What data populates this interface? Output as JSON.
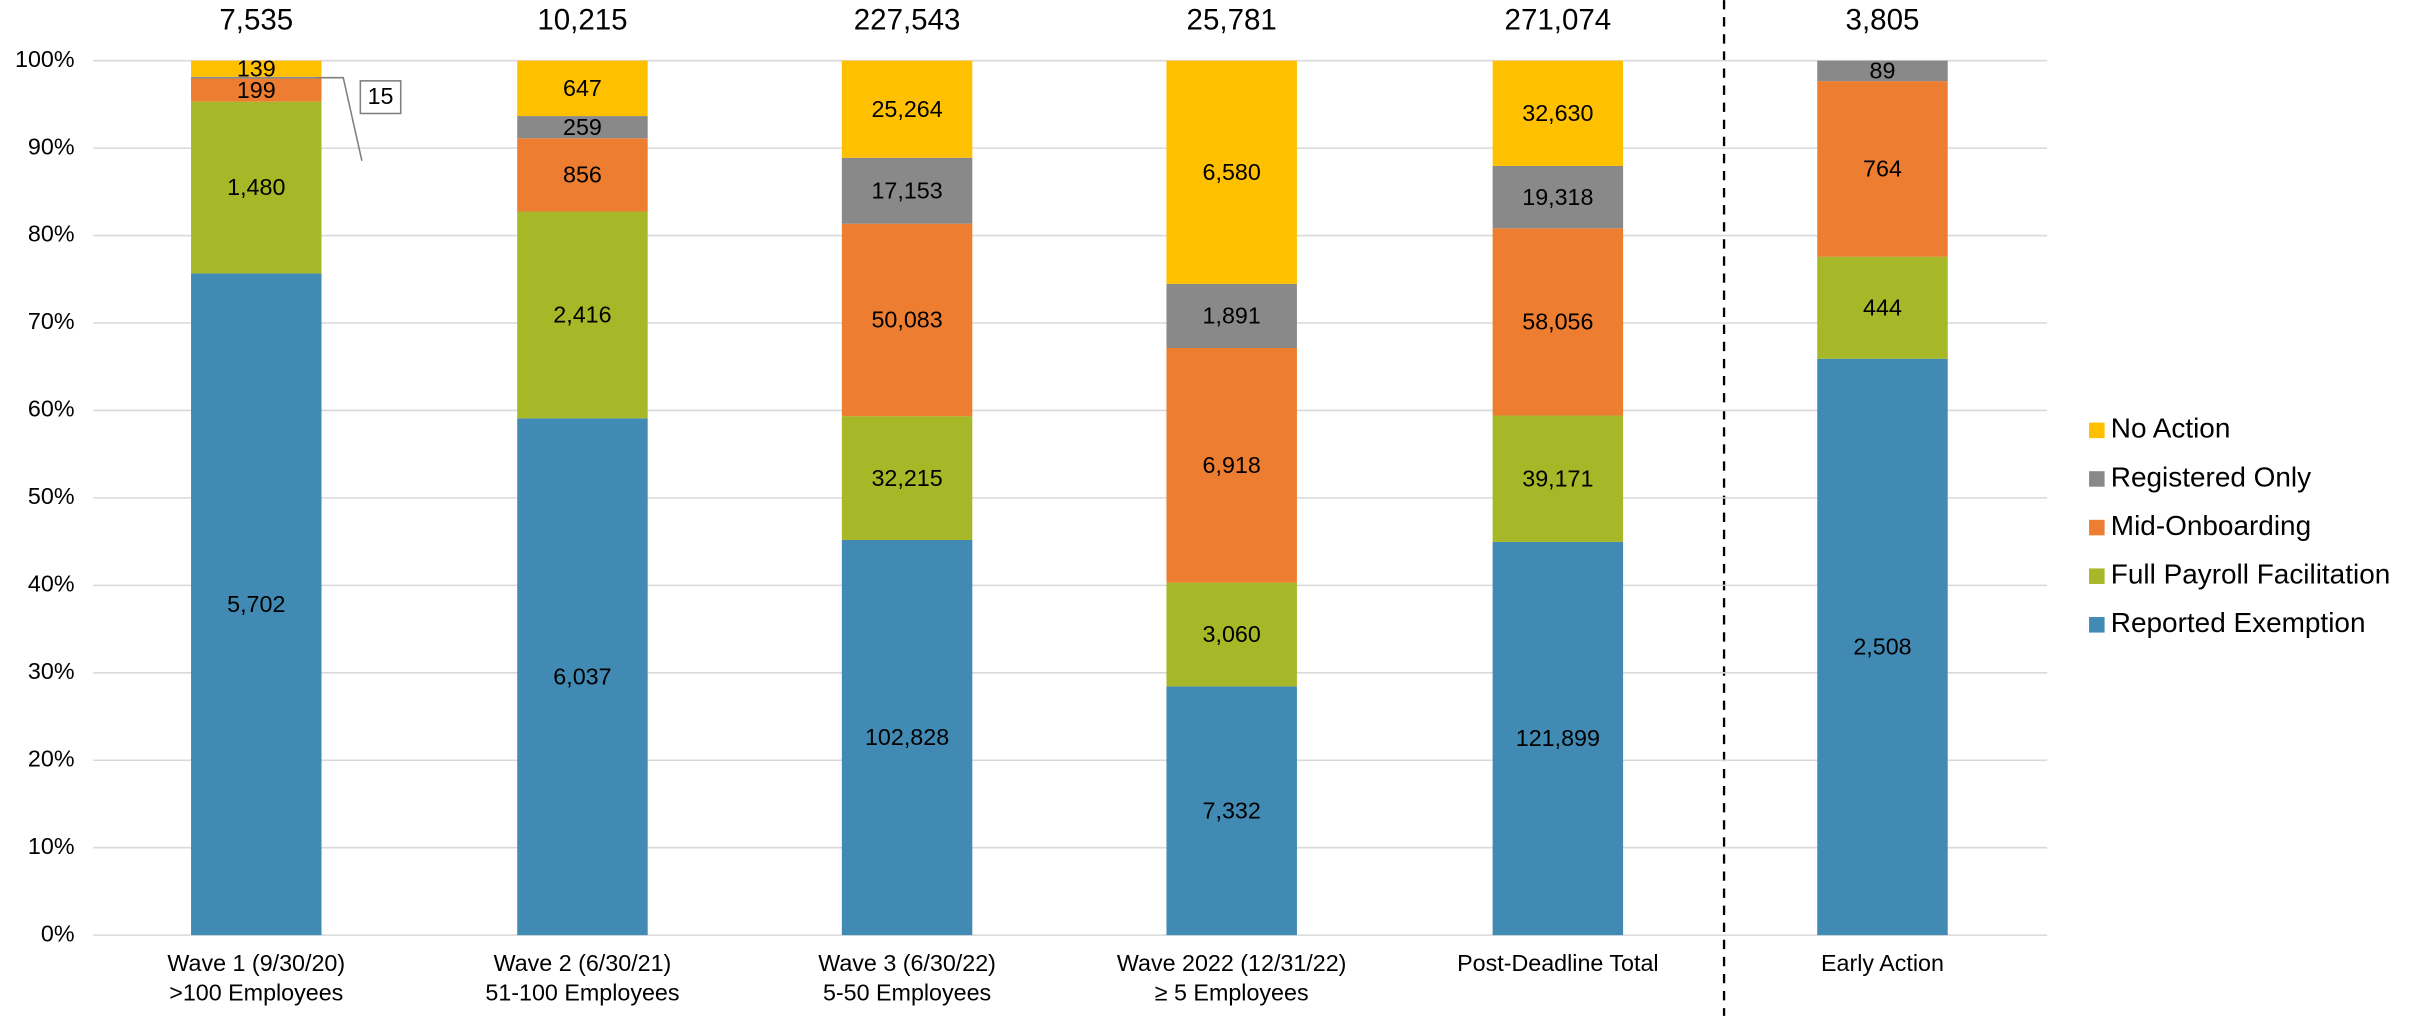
{
  "chart_data": {
    "type": "stacked_bar_percent",
    "categories": [
      [
        "Wave 1 (9/30/20)",
        ">100 Employees"
      ],
      [
        "Wave 2 (6/30/21)",
        "51-100 Employees"
      ],
      [
        "Wave 3 (6/30/22)",
        "5-50 Employees"
      ],
      [
        "Wave 2022 (12/31/22)",
        "≥ 5 Employees"
      ],
      [
        "Post-Deadline Total"
      ],
      [
        "Early Action"
      ]
    ],
    "totals": [
      7535,
      10215,
      227543,
      25781,
      271074,
      3805
    ],
    "totals_labels": [
      "7,535",
      "10,215",
      "227,543",
      "25,781",
      "271,074",
      "3,805"
    ],
    "series": [
      {
        "name": "Reported Exemption",
        "color": "#418ab3",
        "values": [
          5702,
          6037,
          102828,
          7332,
          121899,
          2508
        ],
        "value_labels": [
          "5,702",
          "6,037",
          "102,828",
          "7,332",
          "121,899",
          "2,508"
        ]
      },
      {
        "name": "Full Payroll Facilitation",
        "color": "#a6b727",
        "values": [
          1480,
          2416,
          32215,
          3060,
          39171,
          444
        ],
        "value_labels": [
          "1,480",
          "2,416",
          "32,215",
          "3,060",
          "39,171",
          "444"
        ]
      },
      {
        "name": "Mid-Onboarding",
        "color": "#ed7d31",
        "values": [
          199,
          856,
          50083,
          6918,
          58056,
          764
        ],
        "value_labels": [
          "199",
          "856",
          "50,083",
          "6,918",
          "58,056",
          "764"
        ]
      },
      {
        "name": "Registered Only",
        "color": "#898989",
        "values": [
          15,
          259,
          17153,
          1891,
          19318,
          89
        ],
        "value_labels": [
          "15",
          "259",
          "17,153",
          "1,891",
          "19,318",
          "89"
        ]
      },
      {
        "name": "No Action",
        "color": "#ffc000",
        "values": [
          139,
          647,
          25264,
          6580,
          32630,
          0
        ],
        "value_labels": [
          "139",
          "647",
          "25,264",
          "6,580",
          "32,630",
          null
        ]
      }
    ],
    "ylim": [
      0,
      100
    ],
    "yticks": [
      {
        "value": 0,
        "label": "0%"
      },
      {
        "value": 10,
        "label": "10%"
      },
      {
        "value": 20,
        "label": "20%"
      },
      {
        "value": 30,
        "label": "30%"
      },
      {
        "value": 40,
        "label": "40%"
      },
      {
        "value": 50,
        "label": "50%"
      },
      {
        "value": 60,
        "label": "60%"
      },
      {
        "value": 70,
        "label": "70%"
      },
      {
        "value": 80,
        "label": "80%"
      },
      {
        "value": 90,
        "label": "90%"
      },
      {
        "value": 100,
        "label": "100%"
      }
    ],
    "grid": true,
    "legend": "right"
  }
}
